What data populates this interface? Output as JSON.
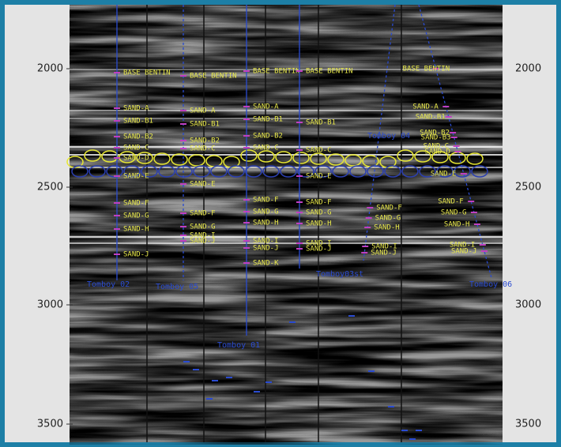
{
  "depth_axis": {
    "ticks": [
      "2000",
      "2500",
      "3000",
      "3500"
    ]
  },
  "wells": [
    {
      "name": "Tomboy 02",
      "tops": [
        "BASE BENTIN",
        "SAND-A",
        "SAND-B1",
        "SAND-B2",
        "SAND-C",
        "SAND-D",
        "SAND-E",
        "SAND-F",
        "SAND-G",
        "SAND-H",
        "SAND-J"
      ]
    },
    {
      "name": "Tomboy 05",
      "tops": [
        "BASE BENTIN",
        "SAND-A",
        "SAND-B1",
        "SAND-B2",
        "SAND-C",
        "SAND-E",
        "SAND-F",
        "SAND-G",
        "SAND-I",
        "SAND-J"
      ]
    },
    {
      "name": "Tomboy 01",
      "tops": [
        "BASE BENTIN",
        "SAND-A",
        "SAND-B1",
        "SAND-B2",
        "SAND-C",
        "SAND-F",
        "SAND-G",
        "SAND-H",
        "SAND-I",
        "SAND-J",
        "SAND-K"
      ]
    },
    {
      "name": "Tomboy03st",
      "tops": [
        "BASE BENTIN",
        "SAND-B1",
        "SAND-C",
        "SAND-E",
        "SAND-F",
        "SAND-G",
        "SAND-H",
        "SAND-I",
        "SAND-J"
      ]
    },
    {
      "name": "Tomboy 04",
      "tops": [
        "SAND-F",
        "SAND-G",
        "SAND-H",
        "SAND-I",
        "SAND-J"
      ]
    },
    {
      "name": "Tomboy 06",
      "tops": [
        "BASE BENTIN",
        "SAND-A",
        "SAND-B1",
        "SAND-B2",
        "SAND-B3",
        "SAND-C",
        "SAND-D",
        "SAND-E",
        "SAND-F",
        "SAND-G",
        "SAND-H",
        "SAND-I",
        "SAND-J"
      ]
    }
  ]
}
